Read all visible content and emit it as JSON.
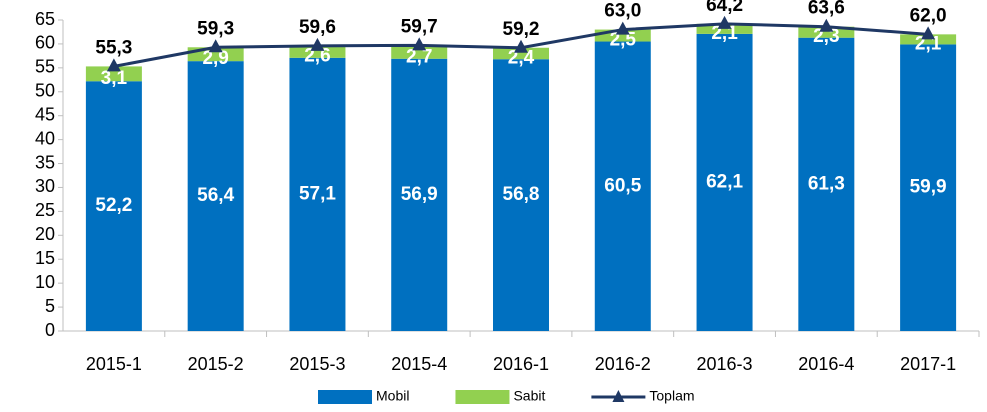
{
  "chart_data": {
    "type": "bar",
    "categories": [
      "2015-1",
      "2015-2",
      "2015-3",
      "2015-4",
      "2016-1",
      "2016-2",
      "2016-3",
      "2016-4",
      "2017-1"
    ],
    "series": [
      {
        "name": "Mobil",
        "color": "#0070c0",
        "values": [
          52.2,
          56.4,
          57.1,
          56.9,
          56.8,
          60.5,
          62.1,
          61.3,
          59.9
        ],
        "value_labels": [
          "52,2",
          "56,4",
          "57,1",
          "56,9",
          "56,8",
          "60,5",
          "62,1",
          "61,3",
          "59,9"
        ]
      },
      {
        "name": "Sabit",
        "color": "#92d050",
        "values": [
          3.1,
          2.9,
          2.6,
          2.7,
          2.4,
          2.5,
          2.1,
          2.3,
          2.1
        ],
        "value_labels": [
          "3,1",
          "2,9",
          "2,6",
          "2,7",
          "2,4",
          "2,5",
          "2,1",
          "2,3",
          "2,1"
        ]
      },
      {
        "name": "Toplam",
        "type": "line",
        "color": "#1f3864",
        "values": [
          55.3,
          59.3,
          59.6,
          59.7,
          59.2,
          63.0,
          64.2,
          63.6,
          62.0
        ],
        "value_labels": [
          "55,3",
          "59,3",
          "59,6",
          "59,7",
          "59,2",
          "63,0",
          "64,2",
          "63,6",
          "62,0"
        ]
      }
    ],
    "ylim": [
      0,
      65
    ],
    "yticks": [
      0,
      5,
      10,
      15,
      20,
      25,
      30,
      35,
      40,
      45,
      50,
      55,
      60,
      65
    ],
    "stacked": true,
    "legend": "bottom"
  }
}
